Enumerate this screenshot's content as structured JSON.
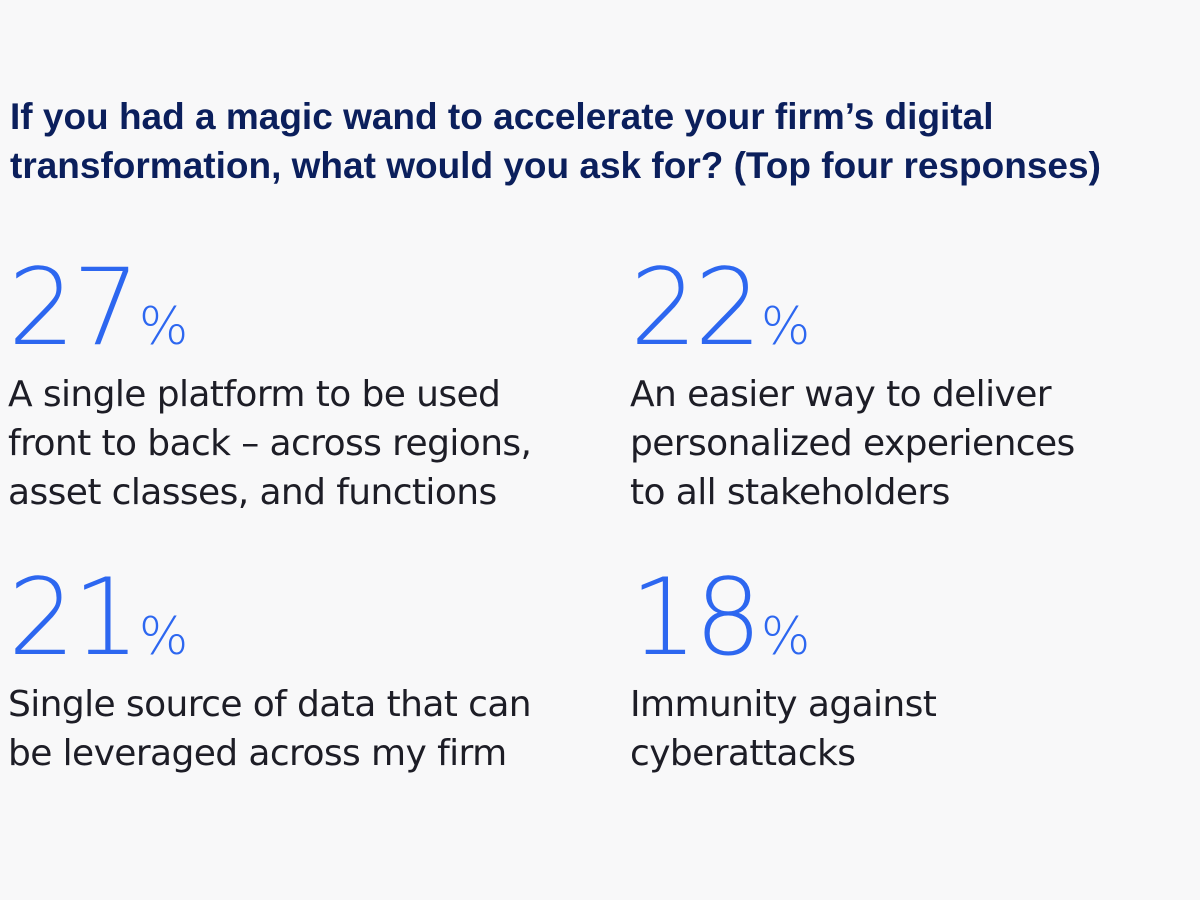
{
  "title_lines": [
    "If you had a magic wand to accelerate your firm’s digital",
    "transformation, what would you ask for? (Top four responses)"
  ],
  "stats": [
    {
      "value": "27",
      "unit": "%",
      "lines": [
        "A single platform to be used",
        "front to back – across regions,",
        "asset classes, and functions"
      ]
    },
    {
      "value": "22",
      "unit": "%",
      "lines": [
        "An easier way to deliver",
        "personalized experiences",
        "to all stakeholders"
      ]
    },
    {
      "value": "21",
      "unit": "%",
      "lines": [
        "Single source of data that can",
        "be leveraged across my firm"
      ]
    },
    {
      "value": "18",
      "unit": "%",
      "lines": [
        "Immunity against",
        "cyberattacks"
      ]
    }
  ],
  "chart_data": {
    "type": "table",
    "title": "If you had a magic wand to accelerate your firm’s digital transformation, what would you ask for? (Top four responses)",
    "categories": [
      "A single platform to be used front to back – across regions, asset classes, and functions",
      "An easier way to deliver personalized experiences to all stakeholders",
      "Single source of data that can be leveraged across my firm",
      "Immunity against cyberattacks"
    ],
    "values": [
      27,
      22,
      21,
      18
    ],
    "unit": "%"
  },
  "colors": {
    "background": "#f8f8f9",
    "title": "#0b1f5c",
    "accent": "#2d67f0",
    "text": "#1d1d26"
  }
}
